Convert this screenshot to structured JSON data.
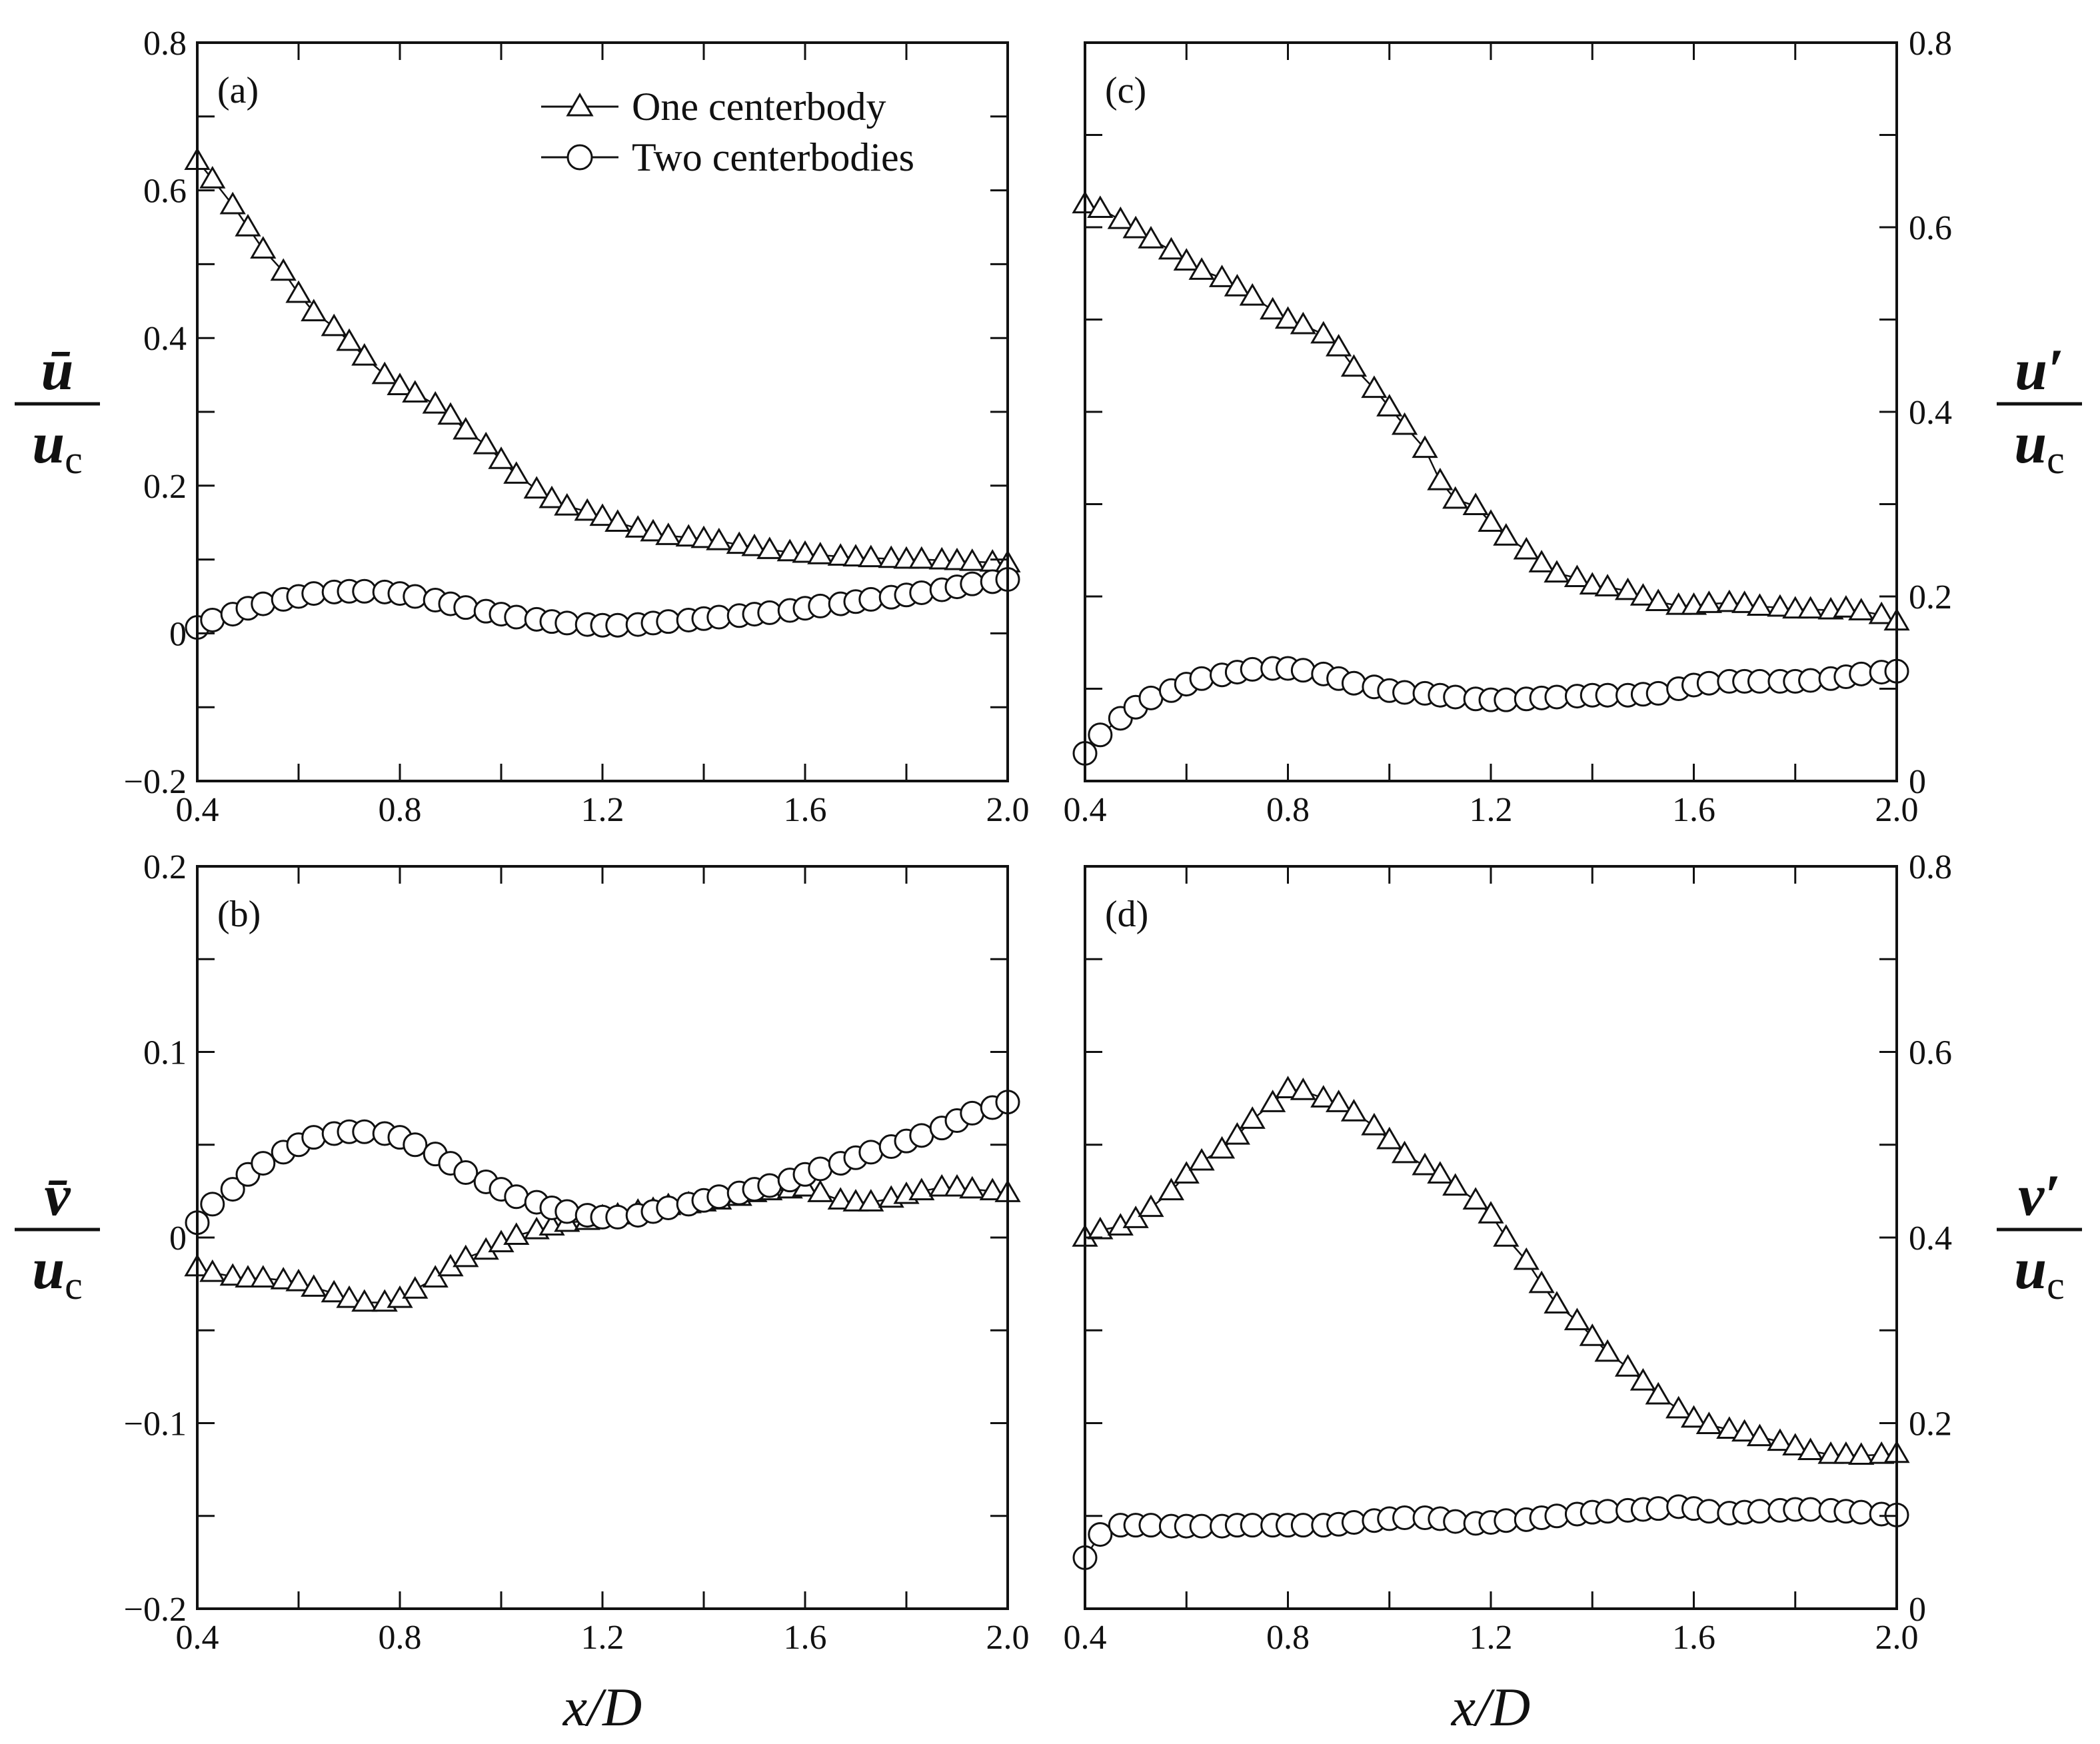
{
  "chart_data": [
    {
      "panel": "(a)",
      "type": "scatter",
      "title": "",
      "xlabel": "",
      "ylabel_top": "ū",
      "ylabel_bottom": "u",
      "ylabel_sub": "c",
      "xlim": [
        0.4,
        2.0
      ],
      "ylim": [
        -0.2,
        0.8
      ],
      "xticks": [
        0.4,
        0.8,
        1.2,
        1.6,
        2.0
      ],
      "xtick_labels": [
        "0.4",
        "0.8",
        "1.2",
        "1.6",
        "2.0"
      ],
      "yticks": [
        -0.2,
        0,
        0.2,
        0.4,
        0.6,
        0.8
      ],
      "ytick_labels": [
        "−0.2",
        "0",
        "0.2",
        "0.4",
        "0.6",
        "0.8"
      ],
      "legend": {
        "placement": "top-right",
        "entries": [
          "One centerbody",
          "Two centerbodies"
        ]
      },
      "series": [
        {
          "name": "One centerbody",
          "marker": "triangle",
          "x": [
            0.4,
            0.43,
            0.47,
            0.5,
            0.53,
            0.57,
            0.6,
            0.63,
            0.67,
            0.7,
            0.73,
            0.77,
            0.8,
            0.83,
            0.87,
            0.9,
            0.93,
            0.97,
            1.0,
            1.03,
            1.07,
            1.1,
            1.13,
            1.17,
            1.2,
            1.23,
            1.27,
            1.3,
            1.33,
            1.37,
            1.4,
            1.43,
            1.47,
            1.5,
            1.53,
            1.57,
            1.6,
            1.63,
            1.67,
            1.7,
            1.73,
            1.77,
            1.8,
            1.83,
            1.87,
            1.9,
            1.93,
            1.97,
            2.0
          ],
          "y": [
            0.64,
            0.615,
            0.58,
            0.55,
            0.52,
            0.49,
            0.46,
            0.435,
            0.415,
            0.395,
            0.375,
            0.35,
            0.335,
            0.325,
            0.31,
            0.295,
            0.275,
            0.255,
            0.235,
            0.215,
            0.195,
            0.182,
            0.172,
            0.165,
            0.158,
            0.15,
            0.142,
            0.137,
            0.132,
            0.13,
            0.128,
            0.125,
            0.12,
            0.117,
            0.113,
            0.11,
            0.108,
            0.106,
            0.104,
            0.103,
            0.102,
            0.101,
            0.1,
            0.1,
            0.099,
            0.098,
            0.097,
            0.096,
            0.095
          ]
        },
        {
          "name": "Two centerbodies",
          "marker": "circle",
          "x": [
            0.4,
            0.43,
            0.47,
            0.5,
            0.53,
            0.57,
            0.6,
            0.63,
            0.67,
            0.7,
            0.73,
            0.77,
            0.8,
            0.83,
            0.87,
            0.9,
            0.93,
            0.97,
            1.0,
            1.03,
            1.07,
            1.1,
            1.13,
            1.17,
            1.2,
            1.23,
            1.27,
            1.3,
            1.33,
            1.37,
            1.4,
            1.43,
            1.47,
            1.5,
            1.53,
            1.57,
            1.6,
            1.63,
            1.67,
            1.7,
            1.73,
            1.77,
            1.8,
            1.83,
            1.87,
            1.9,
            1.93,
            1.97,
            2.0
          ],
          "y": [
            0.008,
            0.018,
            0.026,
            0.034,
            0.04,
            0.046,
            0.05,
            0.054,
            0.056,
            0.057,
            0.057,
            0.056,
            0.054,
            0.05,
            0.045,
            0.04,
            0.035,
            0.03,
            0.026,
            0.022,
            0.019,
            0.016,
            0.014,
            0.012,
            0.011,
            0.011,
            0.012,
            0.014,
            0.016,
            0.018,
            0.02,
            0.022,
            0.024,
            0.026,
            0.028,
            0.031,
            0.034,
            0.037,
            0.04,
            0.043,
            0.046,
            0.049,
            0.052,
            0.055,
            0.059,
            0.063,
            0.067,
            0.07,
            0.073
          ]
        }
      ]
    },
    {
      "panel": "(b)",
      "type": "scatter",
      "title": "",
      "xlabel": "x/D",
      "ylabel_top": "v̄",
      "ylabel_bottom": "u",
      "ylabel_sub": "c",
      "xlim": [
        0.4,
        2.0
      ],
      "ylim": [
        -0.2,
        0.2
      ],
      "xticks": [
        0.4,
        0.8,
        1.2,
        1.6,
        2.0
      ],
      "xtick_labels": [
        "0.4",
        "0.8",
        "1.2",
        "1.6",
        "2.0"
      ],
      "yticks": [
        -0.2,
        -0.1,
        0,
        0.1,
        0.2
      ],
      "ytick_labels": [
        "−0.2",
        "−0.1",
        "0",
        "0.1",
        "0.2"
      ],
      "series": [
        {
          "name": "One centerbody",
          "marker": "triangle",
          "x": [
            0.4,
            0.43,
            0.47,
            0.5,
            0.53,
            0.57,
            0.6,
            0.63,
            0.67,
            0.7,
            0.73,
            0.77,
            0.8,
            0.83,
            0.87,
            0.9,
            0.93,
            0.97,
            1.0,
            1.03,
            1.07,
            1.1,
            1.13,
            1.17,
            1.2,
            1.23,
            1.27,
            1.3,
            1.33,
            1.37,
            1.4,
            1.43,
            1.47,
            1.5,
            1.53,
            1.57,
            1.6,
            1.63,
            1.67,
            1.7,
            1.73,
            1.77,
            1.8,
            1.83,
            1.87,
            1.9,
            1.93,
            1.97,
            2.0
          ],
          "y": [
            -0.016,
            -0.019,
            -0.021,
            -0.022,
            -0.022,
            -0.023,
            -0.024,
            -0.027,
            -0.03,
            -0.033,
            -0.035,
            -0.035,
            -0.033,
            -0.028,
            -0.022,
            -0.016,
            -0.011,
            -0.007,
            -0.003,
            0.001,
            0.004,
            0.006,
            0.008,
            0.009,
            0.011,
            0.012,
            0.014,
            0.015,
            0.017,
            0.018,
            0.019,
            0.02,
            0.022,
            0.024,
            0.025,
            0.026,
            0.027,
            0.024,
            0.02,
            0.019,
            0.019,
            0.021,
            0.023,
            0.025,
            0.027,
            0.027,
            0.026,
            0.025,
            0.024
          ]
        },
        {
          "name": "Two centerbodies",
          "marker": "circle",
          "x": [
            0.4,
            0.43,
            0.47,
            0.5,
            0.53,
            0.57,
            0.6,
            0.63,
            0.67,
            0.7,
            0.73,
            0.77,
            0.8,
            0.83,
            0.87,
            0.9,
            0.93,
            0.97,
            1.0,
            1.03,
            1.07,
            1.1,
            1.13,
            1.17,
            1.2,
            1.23,
            1.27,
            1.3,
            1.33,
            1.37,
            1.4,
            1.43,
            1.47,
            1.5,
            1.53,
            1.57,
            1.6,
            1.63,
            1.67,
            1.7,
            1.73,
            1.77,
            1.8,
            1.83,
            1.87,
            1.9,
            1.93,
            1.97,
            2.0
          ],
          "y": [
            0.008,
            0.018,
            0.026,
            0.034,
            0.04,
            0.046,
            0.05,
            0.054,
            0.056,
            0.057,
            0.057,
            0.056,
            0.054,
            0.05,
            0.045,
            0.04,
            0.035,
            0.03,
            0.026,
            0.022,
            0.019,
            0.016,
            0.014,
            0.012,
            0.011,
            0.011,
            0.012,
            0.014,
            0.016,
            0.018,
            0.02,
            0.022,
            0.024,
            0.026,
            0.028,
            0.031,
            0.034,
            0.037,
            0.04,
            0.043,
            0.046,
            0.049,
            0.052,
            0.055,
            0.059,
            0.063,
            0.067,
            0.07,
            0.073
          ]
        }
      ]
    },
    {
      "panel": "(c)",
      "type": "scatter",
      "title": "",
      "xlabel": "",
      "ylabel_top": "u′",
      "ylabel_bottom": "u",
      "ylabel_sub": "c",
      "yaxis_side": "right",
      "xlim": [
        0.4,
        2.0
      ],
      "ylim": [
        0,
        0.8
      ],
      "xticks": [
        0.4,
        0.8,
        1.2,
        1.6,
        2.0
      ],
      "xtick_labels": [
        "0.4",
        "0.8",
        "1.2",
        "1.6",
        "2.0"
      ],
      "yticks": [
        0,
        0.2,
        0.4,
        0.6,
        0.8
      ],
      "ytick_labels": [
        "0",
        "0.2",
        "0.4",
        "0.6",
        "0.8"
      ],
      "series": [
        {
          "name": "One centerbody",
          "marker": "triangle",
          "x": [
            0.4,
            0.43,
            0.47,
            0.5,
            0.53,
            0.57,
            0.6,
            0.63,
            0.67,
            0.7,
            0.73,
            0.77,
            0.8,
            0.83,
            0.87,
            0.9,
            0.93,
            0.97,
            1.0,
            1.03,
            1.07,
            1.1,
            1.13,
            1.17,
            1.2,
            1.23,
            1.27,
            1.3,
            1.33,
            1.37,
            1.4,
            1.43,
            1.47,
            1.5,
            1.53,
            1.57,
            1.6,
            1.63,
            1.67,
            1.7,
            1.73,
            1.77,
            1.8,
            1.83,
            1.87,
            1.9,
            1.93,
            1.97,
            2.0
          ],
          "y": [
            0.625,
            0.62,
            0.608,
            0.598,
            0.587,
            0.575,
            0.563,
            0.553,
            0.545,
            0.535,
            0.525,
            0.51,
            0.5,
            0.494,
            0.484,
            0.47,
            0.448,
            0.425,
            0.405,
            0.385,
            0.36,
            0.325,
            0.305,
            0.298,
            0.28,
            0.265,
            0.25,
            0.236,
            0.225,
            0.22,
            0.212,
            0.21,
            0.206,
            0.2,
            0.194,
            0.19,
            0.19,
            0.192,
            0.193,
            0.192,
            0.189,
            0.188,
            0.186,
            0.186,
            0.185,
            0.187,
            0.184,
            0.18,
            0.173
          ]
        },
        {
          "name": "Two centerbodies",
          "marker": "circle",
          "x": [
            0.4,
            0.43,
            0.47,
            0.5,
            0.53,
            0.57,
            0.6,
            0.63,
            0.67,
            0.7,
            0.73,
            0.77,
            0.8,
            0.83,
            0.87,
            0.9,
            0.93,
            0.97,
            1.0,
            1.03,
            1.07,
            1.1,
            1.13,
            1.17,
            1.2,
            1.23,
            1.27,
            1.3,
            1.33,
            1.37,
            1.4,
            1.43,
            1.47,
            1.5,
            1.53,
            1.57,
            1.6,
            1.63,
            1.67,
            1.7,
            1.73,
            1.77,
            1.8,
            1.83,
            1.87,
            1.9,
            1.93,
            1.97,
            2.0
          ],
          "y": [
            0.03,
            0.05,
            0.068,
            0.08,
            0.09,
            0.098,
            0.105,
            0.111,
            0.115,
            0.118,
            0.121,
            0.122,
            0.122,
            0.12,
            0.116,
            0.111,
            0.106,
            0.102,
            0.098,
            0.096,
            0.095,
            0.093,
            0.091,
            0.089,
            0.088,
            0.088,
            0.089,
            0.09,
            0.091,
            0.092,
            0.093,
            0.093,
            0.093,
            0.094,
            0.095,
            0.1,
            0.104,
            0.106,
            0.108,
            0.108,
            0.108,
            0.108,
            0.108,
            0.109,
            0.111,
            0.113,
            0.116,
            0.118,
            0.119
          ]
        }
      ]
    },
    {
      "panel": "(d)",
      "type": "scatter",
      "title": "",
      "xlabel": "x/D",
      "ylabel_top": "v′",
      "ylabel_bottom": "u",
      "ylabel_sub": "c",
      "yaxis_side": "right",
      "xlim": [
        0.4,
        2.0
      ],
      "ylim": [
        0,
        0.8
      ],
      "xticks": [
        0.4,
        0.8,
        1.2,
        1.6,
        2.0
      ],
      "xtick_labels": [
        "0.4",
        "0.8",
        "1.2",
        "1.6",
        "2.0"
      ],
      "yticks": [
        0,
        0.2,
        0.4,
        0.6,
        0.8
      ],
      "ytick_labels": [
        "0",
        "0.2",
        "0.4",
        "0.6",
        "0.8"
      ],
      "series": [
        {
          "name": "One centerbody",
          "marker": "triangle",
          "x": [
            0.4,
            0.43,
            0.47,
            0.5,
            0.53,
            0.57,
            0.6,
            0.63,
            0.67,
            0.7,
            0.73,
            0.77,
            0.8,
            0.83,
            0.87,
            0.9,
            0.93,
            0.97,
            1.0,
            1.03,
            1.07,
            1.1,
            1.13,
            1.17,
            1.2,
            1.23,
            1.27,
            1.3,
            1.33,
            1.37,
            1.4,
            1.43,
            1.47,
            1.5,
            1.53,
            1.57,
            1.6,
            1.63,
            1.67,
            1.7,
            1.73,
            1.77,
            1.8,
            1.83,
            1.87,
            1.9,
            1.93,
            1.97,
            2.0
          ],
          "y": [
            0.4,
            0.408,
            0.412,
            0.42,
            0.432,
            0.45,
            0.468,
            0.482,
            0.495,
            0.51,
            0.527,
            0.545,
            0.56,
            0.558,
            0.55,
            0.545,
            0.535,
            0.52,
            0.505,
            0.49,
            0.477,
            0.468,
            0.455,
            0.44,
            0.425,
            0.4,
            0.375,
            0.35,
            0.328,
            0.31,
            0.293,
            0.276,
            0.26,
            0.245,
            0.23,
            0.215,
            0.205,
            0.198,
            0.193,
            0.19,
            0.185,
            0.18,
            0.175,
            0.17,
            0.166,
            0.166,
            0.165,
            0.166,
            0.167
          ]
        },
        {
          "name": "Two centerbodies",
          "marker": "circle",
          "x": [
            0.4,
            0.43,
            0.47,
            0.5,
            0.53,
            0.57,
            0.6,
            0.63,
            0.67,
            0.7,
            0.73,
            0.77,
            0.8,
            0.83,
            0.87,
            0.9,
            0.93,
            0.97,
            1.0,
            1.03,
            1.07,
            1.1,
            1.13,
            1.17,
            1.2,
            1.23,
            1.27,
            1.3,
            1.33,
            1.37,
            1.4,
            1.43,
            1.47,
            1.5,
            1.53,
            1.57,
            1.6,
            1.63,
            1.67,
            1.7,
            1.73,
            1.77,
            1.8,
            1.83,
            1.87,
            1.9,
            1.93,
            1.97,
            2.0
          ],
          "y": [
            0.055,
            0.08,
            0.09,
            0.09,
            0.09,
            0.089,
            0.089,
            0.089,
            0.089,
            0.09,
            0.09,
            0.09,
            0.09,
            0.09,
            0.09,
            0.091,
            0.093,
            0.095,
            0.097,
            0.098,
            0.098,
            0.097,
            0.094,
            0.092,
            0.093,
            0.095,
            0.096,
            0.098,
            0.1,
            0.102,
            0.104,
            0.105,
            0.106,
            0.107,
            0.108,
            0.11,
            0.108,
            0.105,
            0.103,
            0.104,
            0.105,
            0.106,
            0.107,
            0.107,
            0.106,
            0.105,
            0.104,
            0.102,
            0.101
          ]
        }
      ]
    }
  ]
}
